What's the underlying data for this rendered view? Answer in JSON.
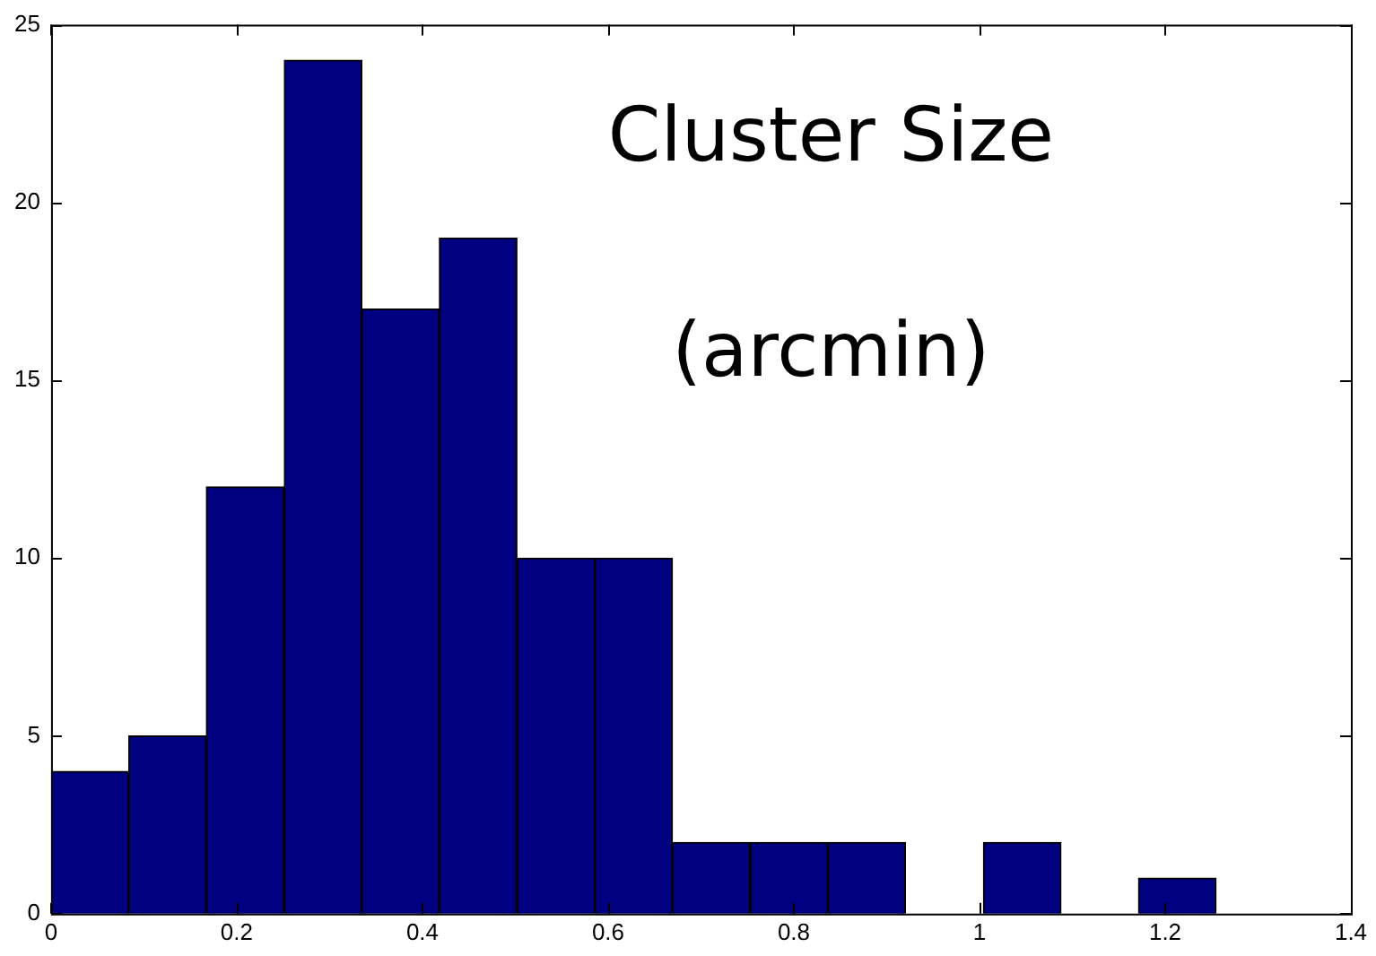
{
  "chart_data": {
    "type": "histogram",
    "bins": [
      0,
      0.084,
      0.167,
      0.251,
      0.335,
      0.418,
      0.502,
      0.586,
      0.669,
      0.753,
      0.837,
      0.92,
      1.004,
      1.088,
      1.171,
      1.255
    ],
    "values": [
      4,
      5,
      12,
      24,
      17,
      19,
      10,
      10,
      2,
      2,
      2,
      0,
      2,
      0,
      1
    ],
    "color": "#000080",
    "xlim": [
      0,
      1.4
    ],
    "xticks": [
      0,
      0.2,
      0.4,
      0.6,
      0.8,
      1,
      1.2,
      1.4
    ],
    "ylim": [
      0,
      25
    ],
    "yticks": [
      0,
      5,
      10,
      15,
      20,
      25
    ],
    "grid": false,
    "legend": false,
    "annotations": [
      "Cluster Size",
      "(arcmin)"
    ]
  }
}
